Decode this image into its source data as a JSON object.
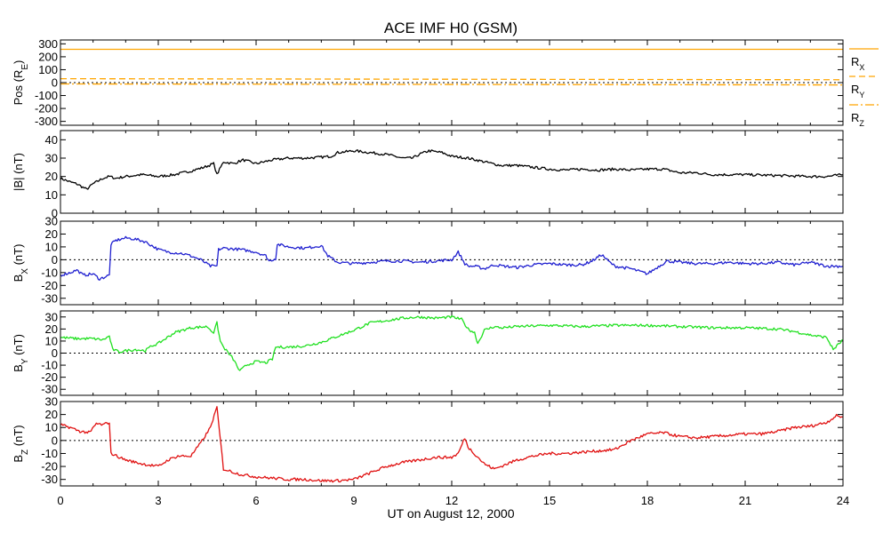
{
  "chart_data": {
    "type": "line",
    "title": "ACE IMF H0 (GSM)",
    "xlabel": "UT on August 12, 2000",
    "xlim": [
      0,
      24
    ],
    "xticks": [
      0,
      3,
      6,
      9,
      12,
      15,
      18,
      21,
      24
    ],
    "xtick_labels": [
      "0",
      "3",
      "6",
      "9",
      "12",
      "15",
      "18",
      "21",
      "24"
    ],
    "grid": false,
    "legend_position": "right",
    "panels": [
      {
        "id": "pos",
        "ylabel": "Pos (RE)",
        "ylabel_main": "Pos (R",
        "ylabel_sub": "E",
        "ylabel_end": ")",
        "ylim": [
          -330,
          330
        ],
        "yticks": [
          -300,
          -200,
          -100,
          0,
          100,
          200,
          300
        ],
        "ytick_labels": [
          "-300",
          "-200",
          "-100",
          "0",
          "100",
          "200",
          "300"
        ],
        "zero_line": true,
        "series": [
          {
            "name": "RX",
            "label_main": "R",
            "label_sub": "X",
            "color": "#ffa500",
            "dash": "",
            "x": [
              0,
              24
            ],
            "y": [
              258,
              258
            ]
          },
          {
            "name": "RY",
            "label_main": "R",
            "label_sub": "Y",
            "color": "#ffa500",
            "dash": "7 4",
            "x": [
              0,
              24
            ],
            "y": [
              30,
              22
            ]
          },
          {
            "name": "RZ",
            "label_main": "R",
            "label_sub": "Z",
            "color": "#ffa500",
            "dash": "10 3 2 3",
            "x": [
              0,
              24
            ],
            "y": [
              -10,
              -18
            ]
          }
        ]
      },
      {
        "id": "bt",
        "ylabel": "|B| (nT)",
        "ylabel_main": "|B| (nT)",
        "ylim": [
          0,
          45
        ],
        "yticks": [
          0,
          10,
          20,
          30,
          40
        ],
        "ytick_labels": [
          "0",
          "10",
          "20",
          "30",
          "40"
        ],
        "zero_line": false,
        "series": [
          {
            "name": "|B|",
            "color": "#000000",
            "x": [
              0,
              0.3,
              0.5,
              0.8,
              1.0,
              1.3,
              1.5,
              1.7,
              2.0,
              2.5,
              3.0,
              3.5,
              4.0,
              4.4,
              4.7,
              4.8,
              5.0,
              5.3,
              5.6,
              6.0,
              6.5,
              7.0,
              7.5,
              8.0,
              8.3,
              8.5,
              9.0,
              9.5,
              10.0,
              10.5,
              10.8,
              11.0,
              11.3,
              11.7,
              12.0,
              12.5,
              13.0,
              13.5,
              14.0,
              14.5,
              15.0,
              15.5,
              16.0,
              16.5,
              17.0,
              17.5,
              18.0,
              18.5,
              19.0,
              19.5,
              20.0,
              21.0,
              22.0,
              23.0,
              23.5,
              24.0
            ],
            "y": [
              19,
              17,
              16,
              13,
              16,
              19,
              20,
              19,
              20,
              21,
              20,
              21,
              23,
              25,
              27,
              21,
              28,
              27,
              29,
              27,
              29,
              30,
              30,
              30.5,
              31,
              33,
              34,
              33,
              32,
              30,
              30,
              32,
              34,
              33,
              31,
              30,
              28,
              26,
              26,
              25,
              24,
              23.5,
              24,
              23.5,
              24,
              23.5,
              24,
              24,
              22,
              22,
              21,
              21,
              20.5,
              20,
              20,
              21
            ]
          }
        ]
      },
      {
        "id": "bx",
        "ylabel": "BX (nT)",
        "ylabel_main": "B",
        "ylabel_sub": "X",
        "ylabel_end": " (nT)",
        "ylim": [
          -35,
          30
        ],
        "yticks": [
          -30,
          -20,
          -10,
          0,
          10,
          20,
          30
        ],
        "ytick_labels": [
          "-30",
          "-20",
          "-10",
          "0",
          "10",
          "20",
          "30"
        ],
        "zero_line": true,
        "series": [
          {
            "name": "BX",
            "color": "#2020d0",
            "x": [
              0,
              0.3,
              0.5,
              0.7,
              1.0,
              1.2,
              1.4,
              1.5,
              1.55,
              1.7,
              2.0,
              2.3,
              2.6,
              3.0,
              3.3,
              3.7,
              4.0,
              4.3,
              4.6,
              4.8,
              4.85,
              5.0,
              5.5,
              6.0,
              6.3,
              6.4,
              6.6,
              6.65,
              7.0,
              7.5,
              8.0,
              8.2,
              8.5,
              9.0,
              9.5,
              10.0,
              10.5,
              11.0,
              11.5,
              12.0,
              12.2,
              12.4,
              12.5,
              12.7,
              13.0,
              13.3,
              13.6,
              14.0,
              14.5,
              15.0,
              15.5,
              16.0,
              16.3,
              16.6,
              16.8,
              17.0,
              17.5,
              18.0,
              18.3,
              18.6,
              19.0,
              19.5,
              20.0,
              20.5,
              21.0,
              21.5,
              22.0,
              22.5,
              23.0,
              23.5,
              24.0
            ],
            "y": [
              -12,
              -10,
              -8,
              -12,
              -11,
              -15,
              -13,
              -12,
              12,
              15,
              17,
              16,
              14,
              8,
              6,
              5,
              3,
              0,
              -5,
              -5,
              8,
              9,
              8,
              6,
              3,
              -1,
              1,
              12,
              10,
              9,
              11,
              3,
              -2,
              -3,
              -2,
              -1,
              -1,
              -2,
              -1,
              0,
              6,
              -3,
              -5,
              -5,
              -7,
              -4,
              -5,
              -6,
              -4,
              -3,
              -4,
              -4,
              -1,
              4,
              -1,
              -5,
              -7,
              -11,
              -6,
              -1,
              -2,
              -3,
              -3,
              -2,
              -3,
              -3,
              -2,
              -4,
              -2,
              -5,
              -5
            ]
          }
        ]
      },
      {
        "id": "by",
        "ylabel": "BY (nT)",
        "ylabel_main": "B",
        "ylabel_sub": "Y",
        "ylabel_end": " (nT)",
        "ylim": [
          -35,
          35
        ],
        "yticks": [
          -30,
          -20,
          -10,
          0,
          10,
          20,
          30
        ],
        "ytick_labels": [
          "-30",
          "-20",
          "-10",
          "0",
          "10",
          "20",
          "30"
        ],
        "zero_line": true,
        "series": [
          {
            "name": "BY",
            "color": "#20e020",
            "x": [
              0,
              0.5,
              1.0,
              1.3,
              1.5,
              1.6,
              1.8,
              2.0,
              2.3,
              2.6,
              2.8,
              3.0,
              3.5,
              4.0,
              4.5,
              4.7,
              4.8,
              4.9,
              5.0,
              5.3,
              5.5,
              5.7,
              6.0,
              6.3,
              6.5,
              6.6,
              7.0,
              7.5,
              8.0,
              8.5,
              9.0,
              9.5,
              10.0,
              10.5,
              11.0,
              11.5,
              12.0,
              12.3,
              12.5,
              12.7,
              12.8,
              13.0,
              13.3,
              13.5,
              14.0,
              15.0,
              16.0,
              17.0,
              18.0,
              19.0,
              20.0,
              21.0,
              22.0,
              22.5,
              23.0,
              23.5,
              23.7,
              24.0
            ],
            "y": [
              13,
              12,
              12,
              11,
              14,
              3,
              1,
              2,
              3,
              2,
              6,
              8,
              17,
              21,
              22,
              17,
              25,
              10,
              5,
              -5,
              -15,
              -10,
              -7,
              -8,
              -5,
              5,
              5,
              6,
              9,
              14,
              19,
              25,
              27,
              29,
              30,
              29,
              30,
              28,
              20,
              17,
              8,
              19,
              22,
              21,
              22,
              23,
              22,
              23,
              23,
              22,
              21,
              21,
              20,
              18,
              15,
              13,
              3,
              11
            ]
          }
        ]
      },
      {
        "id": "bz",
        "ylabel": "BZ (nT)",
        "ylabel_main": "B",
        "ylabel_sub": "Z",
        "ylabel_end": " (nT)",
        "ylim": [
          -35,
          30
        ],
        "yticks": [
          -30,
          -20,
          -10,
          0,
          10,
          20,
          30
        ],
        "ytick_labels": [
          "-30",
          "-20",
          "-10",
          "0",
          "10",
          "20",
          "30"
        ],
        "zero_line": true,
        "series": [
          {
            "name": "BZ",
            "color": "#e01010",
            "x": [
              0,
              0.3,
              0.6,
              0.9,
              1.1,
              1.3,
              1.5,
              1.55,
              2.0,
              2.5,
              3.0,
              3.3,
              3.6,
              4.0,
              4.3,
              4.6,
              4.75,
              4.8,
              5.0,
              5.5,
              6.0,
              6.5,
              7.0,
              7.5,
              8.0,
              8.5,
              9.0,
              9.5,
              10.0,
              10.5,
              11.0,
              11.5,
              12.0,
              12.2,
              12.4,
              12.5,
              13.0,
              13.3,
              13.6,
              14.0,
              14.5,
              15.0,
              15.5,
              16.0,
              16.5,
              17.0,
              17.5,
              18.0,
              18.5,
              19.0,
              19.5,
              20.0,
              20.5,
              21.0,
              21.5,
              22.0,
              22.5,
              23.0,
              23.5,
              23.8,
              24.0
            ],
            "y": [
              12,
              10,
              7,
              6,
              13,
              12,
              14,
              -10,
              -15,
              -18,
              -20,
              -15,
              -12,
              -12,
              -2,
              10,
              22,
              25,
              -22,
              -26,
              -28,
              -29,
              -30,
              -30,
              -31,
              -31,
              -30,
              -25,
              -20,
              -17,
              -15,
              -13,
              -13,
              -10,
              2,
              -5,
              -18,
              -22,
              -19,
              -15,
              -12,
              -10,
              -10,
              -9,
              -8,
              -7,
              0,
              5,
              6,
              3,
              2,
              3,
              4,
              5,
              5,
              7,
              10,
              11,
              14,
              19,
              18
            ]
          }
        ]
      }
    ]
  }
}
